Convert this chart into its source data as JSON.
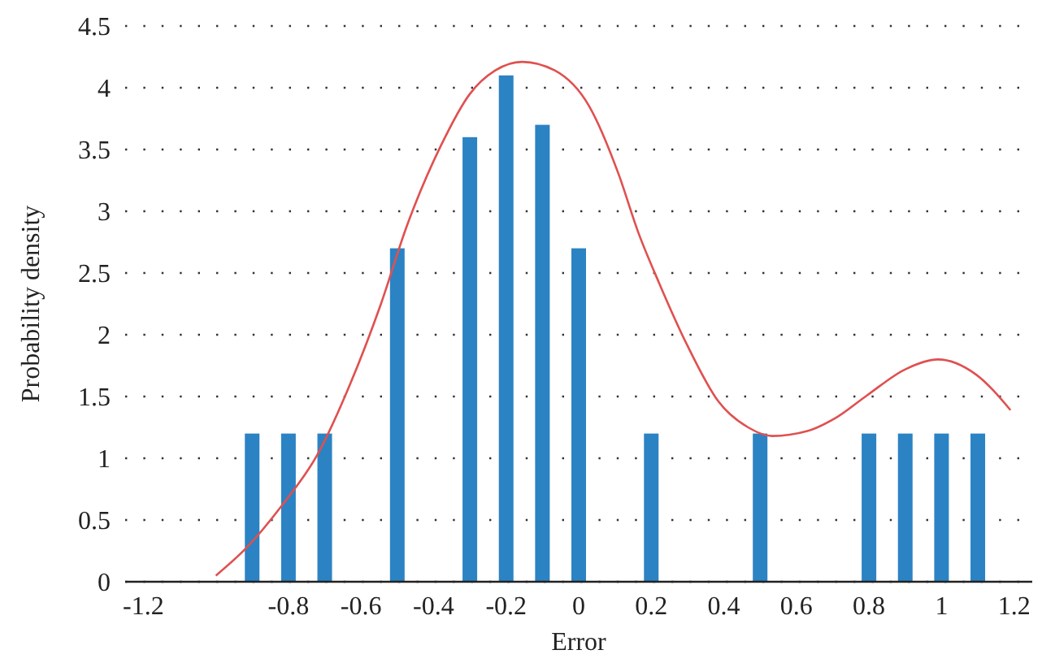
{
  "chart_data": {
    "type": "bar",
    "xlabel": "Error",
    "ylabel": "Probability density",
    "xlim": [
      -1.25,
      1.25
    ],
    "xticks": [
      -1.2,
      -0.8,
      -0.6,
      -0.4,
      -0.2,
      0,
      0.2,
      0.4,
      0.6,
      0.8,
      1,
      1.2
    ],
    "ylim": [
      0,
      4.5
    ],
    "yticks": [
      0,
      0.5,
      1,
      1.5,
      2,
      2.5,
      3,
      3.5,
      4,
      4.5
    ],
    "grid": "y",
    "series": [
      {
        "color": "#2b83c3",
        "x": [
          -0.9,
          -0.8,
          -0.7,
          -0.5,
          -0.3,
          -0.2,
          -0.1,
          0,
          0.2,
          0.5,
          0.8,
          0.9,
          1,
          1.1
        ],
        "values": [
          1.2,
          1.2,
          1.2,
          2.7,
          3.6,
          4.1,
          3.7,
          2.7,
          1.2,
          1.2,
          1.2,
          1.2,
          1.2,
          1.2
        ]
      },
      {
        "type": "line",
        "color": "#e05050",
        "x": [
          -1,
          -0.914,
          -0.82,
          -0.72,
          -0.63,
          -0.545,
          -0.475,
          -0.38,
          -0.3,
          -0.23,
          -0.156,
          -0.066,
          0.029,
          0.11,
          0.164,
          0.22,
          0.3,
          0.385,
          0.467,
          0.533,
          0.63,
          0.71,
          0.795,
          0.9,
          0.99,
          1.094,
          1.19
        ],
        "values": [
          0.05,
          0.28,
          0.61,
          1.03,
          1.6,
          2.25,
          2.87,
          3.53,
          3.95,
          4.14,
          4.21,
          4.14,
          3.85,
          3.3,
          2.83,
          2.43,
          1.91,
          1.46,
          1.25,
          1.18,
          1.22,
          1.33,
          1.51,
          1.72,
          1.8,
          1.68,
          1.39
        ]
      }
    ]
  }
}
